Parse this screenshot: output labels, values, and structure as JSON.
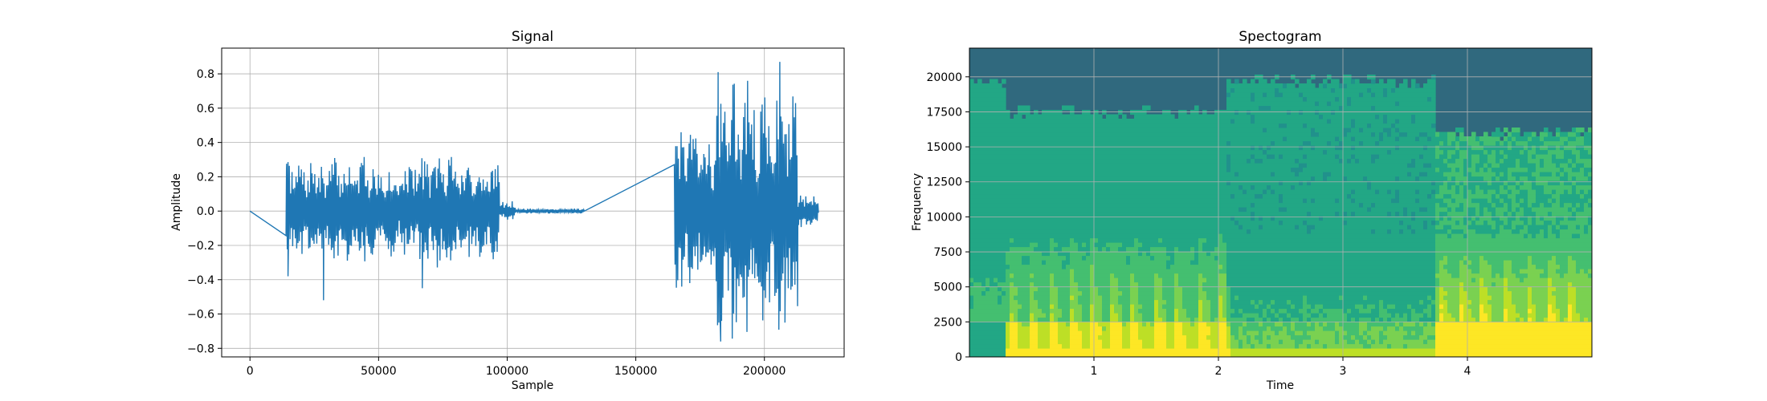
{
  "chart_data": [
    {
      "type": "line",
      "title": "Signal",
      "xlabel": "Sample",
      "ylabel": "Amplitude",
      "xlim": [
        -11000,
        231000
      ],
      "ylim": [
        -0.85,
        0.95
      ],
      "xticks": [
        0,
        50000,
        100000,
        150000,
        200000
      ],
      "xtick_labels": [
        "0",
        "50000",
        "100000",
        "150000",
        "200000"
      ],
      "yticks": [
        -0.8,
        -0.6,
        -0.4,
        -0.2,
        0.0,
        0.2,
        0.4,
        0.6,
        0.8
      ],
      "ytick_labels": [
        "−0.8",
        "−0.6",
        "−0.4",
        "−0.2",
        "0.0",
        "0.2",
        "0.4",
        "0.6",
        "0.8"
      ],
      "grid": true,
      "line_color": "#1f77b4",
      "series": [
        {
          "segments": [
            {
              "start": 0,
              "end": 14000,
              "amp": 0.0
            },
            {
              "start": 14000,
              "end": 28000,
              "amp": 0.3
            },
            {
              "start": 28000,
              "end": 45000,
              "amp": 0.32
            },
            {
              "start": 45000,
              "end": 64000,
              "amp": 0.28
            },
            {
              "start": 64000,
              "end": 80000,
              "amp": 0.35
            },
            {
              "start": 80000,
              "end": 97000,
              "amp": 0.3
            },
            {
              "start": 97000,
              "end": 103000,
              "amp": 0.06
            },
            {
              "start": 103000,
              "end": 130000,
              "amp": 0.015
            },
            {
              "start": 130000,
              "end": 165000,
              "amp": 0.0
            },
            {
              "start": 165000,
              "end": 181000,
              "amp": 0.5
            },
            {
              "start": 181000,
              "end": 196000,
              "amp": 0.78
            },
            {
              "start": 196000,
              "end": 213000,
              "amp": 0.72
            },
            {
              "start": 213000,
              "end": 221000,
              "amp": 0.12
            }
          ],
          "peaks": [
            {
              "x": 14200,
              "y": 0.25
            },
            {
              "x": 14800,
              "y": -0.38
            },
            {
              "x": 28600,
              "y": -0.52
            },
            {
              "x": 67000,
              "y": -0.45
            },
            {
              "x": 182000,
              "y": 0.81
            },
            {
              "x": 183000,
              "y": -0.76
            },
            {
              "x": 206000,
              "y": 0.87
            },
            {
              "x": 208000,
              "y": -0.65
            }
          ]
        }
      ]
    },
    {
      "type": "heatmap",
      "title": "Spectogram",
      "xlabel": "Time",
      "ylabel": "Frequency",
      "xlim": [
        0,
        5
      ],
      "ylim": [
        0,
        22050
      ],
      "xticks": [
        1,
        2,
        3,
        4
      ],
      "xtick_labels": [
        "1",
        "2",
        "3",
        "4"
      ],
      "yticks": [
        0,
        2500,
        5000,
        7500,
        10000,
        12500,
        15000,
        17500,
        20000
      ],
      "ytick_labels": [
        "0",
        "2500",
        "5000",
        "7500",
        "10000",
        "12500",
        "15000",
        "17500",
        "20000"
      ],
      "grid": true,
      "colormap": [
        "#30697e",
        "#2a788e",
        "#21918c",
        "#22a785",
        "#44bf70",
        "#7ad151",
        "#bddf26",
        "#fde725"
      ],
      "background_color": "#30697e",
      "segments": [
        {
          "t0": 0.0,
          "t1": 0.3,
          "cutoff": 19800,
          "level": 0.42
        },
        {
          "t0": 0.3,
          "t1": 2.05,
          "cutoff": 17500,
          "level": 0.45
        },
        {
          "t0": 2.05,
          "t1": 3.75,
          "cutoff": 19700,
          "level": 0.38
        },
        {
          "t0": 3.75,
          "t1": 5.0,
          "cutoff": 16000,
          "level": 0.5
        }
      ],
      "onsets": [
        0.32,
        0.48,
        0.65,
        0.82,
        0.98,
        1.15,
        1.3,
        1.5,
        1.65,
        1.85,
        2.02,
        3.78,
        3.95,
        4.12,
        4.3,
        4.48,
        4.66,
        4.82
      ]
    }
  ]
}
